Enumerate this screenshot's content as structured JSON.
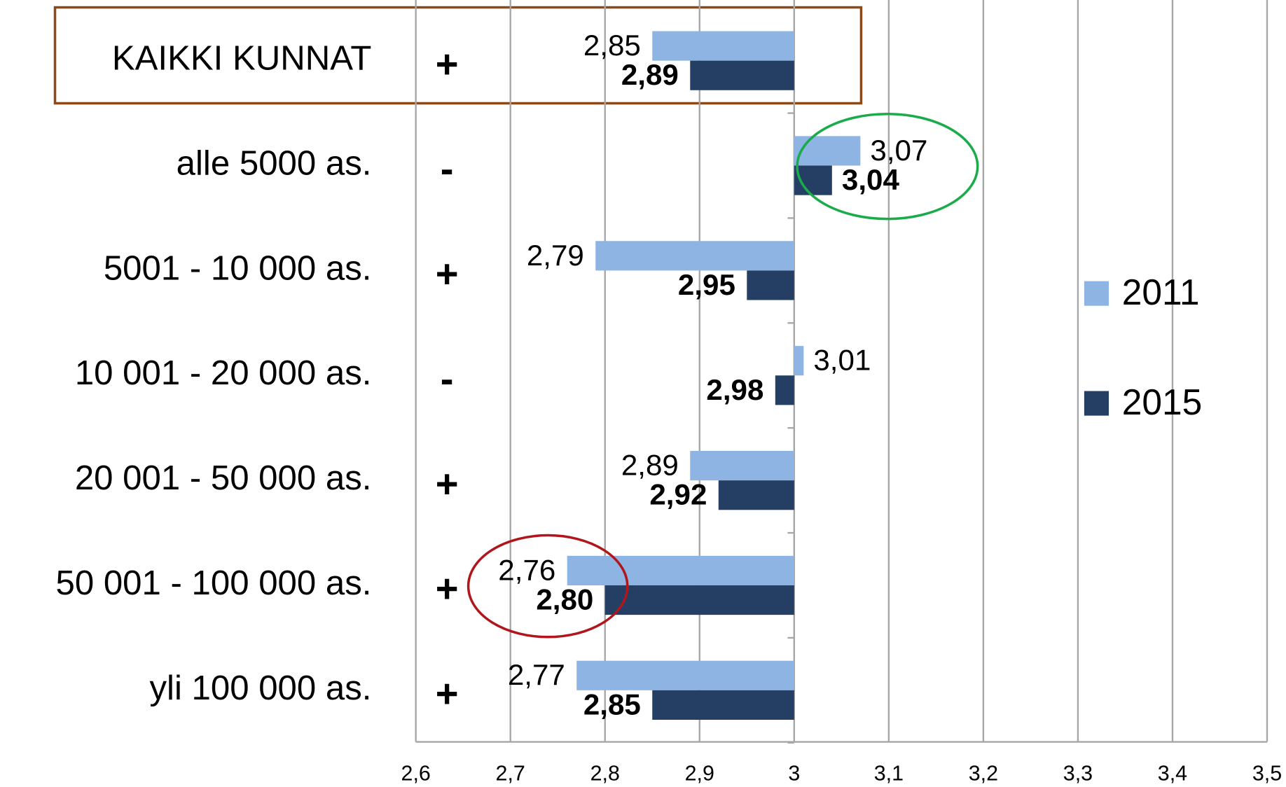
{
  "chart_data": {
    "type": "bar",
    "orientation": "horizontal",
    "base": 3,
    "categories": [
      "KAIKKI KUNNAT",
      "alle 5000 as.",
      "5001 - 10 000 as.",
      "10 001 - 20 000 as.",
      "20 001 - 50 000 as.",
      "50 001 - 100 000 as.",
      "yli 100 000 as."
    ],
    "change_signs": [
      "+",
      "-",
      "+",
      "-",
      "+",
      "+",
      "+"
    ],
    "change_sign_colors": [
      "#1aab4b",
      "#e31e24",
      "#1aab4b",
      "#e31e24",
      "#1aab4b",
      "#1aab4b",
      "#1aab4b"
    ],
    "series": [
      {
        "name": "2011",
        "color": "#8eb4e3",
        "values": [
          2.85,
          3.07,
          2.79,
          3.01,
          2.89,
          2.76,
          2.77
        ],
        "value_labels": [
          "2,85",
          "3,07",
          "2,79",
          "3,01",
          "2,89",
          "2,76",
          "2,77"
        ]
      },
      {
        "name": "2015",
        "color": "#243f63",
        "values": [
          2.89,
          3.04,
          2.95,
          2.98,
          2.92,
          2.8,
          2.85
        ],
        "value_labels": [
          "2,89",
          "3,04",
          "2,95",
          "2,98",
          "2,92",
          "2,80",
          "2,85"
        ]
      }
    ],
    "xlim": [
      2.6,
      3.5
    ],
    "xticks": [
      {
        "value": 2.6,
        "label": "2,6"
      },
      {
        "value": 2.7,
        "label": "2,7"
      },
      {
        "value": 2.8,
        "label": "2,8"
      },
      {
        "value": 2.9,
        "label": "2,9"
      },
      3,
      {
        "value": 3.1,
        "label": "3,1"
      },
      {
        "value": 3.2,
        "label": "3,2"
      },
      {
        "value": 3.3,
        "label": "3,3"
      },
      {
        "value": 3.4,
        "label": "3,4"
      },
      {
        "value": 3.5,
        "label": "3,5"
      }
    ],
    "grid": true,
    "legend": "right"
  }
}
